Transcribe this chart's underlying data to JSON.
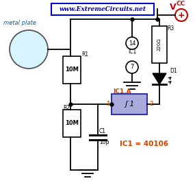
{
  "title": "www.ExtremeCircuits.net",
  "vcc_label": "V",
  "vcc_sub": "CC",
  "metal_plate_label": "metal plate",
  "r1_label": "10M",
  "r2_label": "10M",
  "r3_label": "220Ω",
  "c1_label": "10p",
  "ic1_label": "IC1",
  "ic1a_label": "IC1.A",
  "d1_label": "D1",
  "r1_tag": "R1",
  "r2_tag": "R2",
  "r3_tag": "R3",
  "c1_tag": "C1",
  "pin14": "14",
  "pin7": "7",
  "pin1": "1",
  "pin2": "2",
  "ic1_eq": "IC1 = 40106",
  "bg_color": "#ffffff",
  "title_box_color": "#0000cc",
  "title_box_bg": "#ffffff",
  "circle_fill": "#d8f4ff",
  "circle_edge": "#555555",
  "resistor_fill": "#ffffff",
  "resistor_edge": "#000000",
  "r3_fill": "#ffffff",
  "ic1a_fill": "#aaaadd",
  "wire_color": "#000000",
  "vcc_color": "#cc0000",
  "ic1a_label_color": "#cc4400",
  "ic1eq_color": "#cc4400",
  "pin_color": "#cc6600"
}
